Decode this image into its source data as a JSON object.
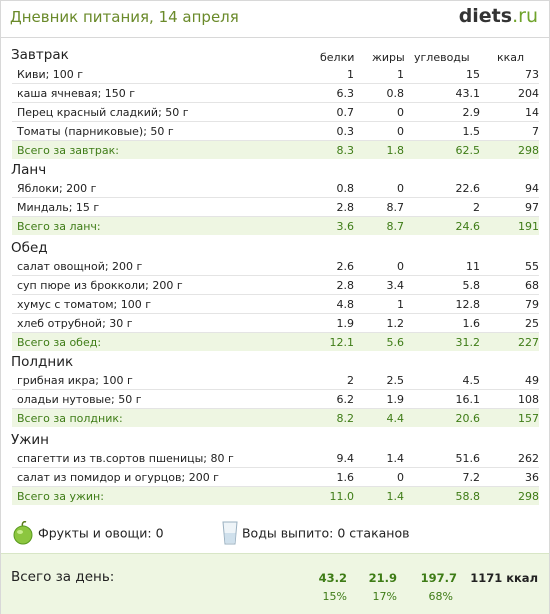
{
  "header": {
    "title": "Дневник питания, 14 апреля",
    "brand_main": "diets",
    "brand_domain": ".ru"
  },
  "columns": [
    "белки",
    "жиры",
    "углеводы",
    "ккал"
  ],
  "meals": [
    {
      "name": "Завтрак",
      "items": [
        {
          "name": "Киви; 100 г",
          "v": [
            "1",
            "1",
            "15",
            "73"
          ]
        },
        {
          "name": "каша ячневая; 150 г",
          "v": [
            "6.3",
            "0.8",
            "43.1",
            "204"
          ]
        },
        {
          "name": "Перец красный сладкий; 50 г",
          "v": [
            "0.7",
            "0",
            "2.9",
            "14"
          ]
        },
        {
          "name": "Томаты (парниковые); 50 г",
          "v": [
            "0.3",
            "0",
            "1.5",
            "7"
          ]
        }
      ],
      "total": {
        "name": "Всего за завтрак:",
        "v": [
          "8.3",
          "1.8",
          "62.5",
          "298"
        ]
      }
    },
    {
      "name": "Ланч",
      "items": [
        {
          "name": "Яблоки; 200 г",
          "v": [
            "0.8",
            "0",
            "22.6",
            "94"
          ]
        },
        {
          "name": "Миндаль; 15 г",
          "v": [
            "2.8",
            "8.7",
            "2",
            "97"
          ]
        }
      ],
      "total": {
        "name": "Всего за ланч:",
        "v": [
          "3.6",
          "8.7",
          "24.6",
          "191"
        ]
      }
    },
    {
      "name": "Обед",
      "items": [
        {
          "name": "салат овощной; 200 г",
          "v": [
            "2.6",
            "0",
            "11",
            "55"
          ]
        },
        {
          "name": "суп пюре из брокколи; 200 г",
          "v": [
            "2.8",
            "3.4",
            "5.8",
            "68"
          ]
        },
        {
          "name": "хумус с томатом; 100 г",
          "v": [
            "4.8",
            "1",
            "12.8",
            "79"
          ]
        },
        {
          "name": "хлеб отрубной; 30 г",
          "v": [
            "1.9",
            "1.2",
            "1.6",
            "25"
          ]
        }
      ],
      "total": {
        "name": "Всего за обед:",
        "v": [
          "12.1",
          "5.6",
          "31.2",
          "227"
        ]
      }
    },
    {
      "name": "Полдник",
      "items": [
        {
          "name": "грибная икра; 100 г",
          "v": [
            "2",
            "2.5",
            "4.5",
            "49"
          ]
        },
        {
          "name": "оладьи нутовые; 50 г",
          "v": [
            "6.2",
            "1.9",
            "16.1",
            "108"
          ]
        }
      ],
      "total": {
        "name": "Всего за полдник:",
        "v": [
          "8.2",
          "4.4",
          "20.6",
          "157"
        ]
      }
    },
    {
      "name": "Ужин",
      "items": [
        {
          "name": "спагетти из тв.сортов пшеницы; 80 г",
          "v": [
            "9.4",
            "1.4",
            "51.6",
            "262"
          ]
        },
        {
          "name": "салат из помидор и огурцов; 200 г",
          "v": [
            "1.6",
            "0",
            "7.2",
            "36"
          ]
        }
      ],
      "total": {
        "name": "Всего за ужин:",
        "v": [
          "11.0",
          "1.4",
          "58.8",
          "298"
        ]
      }
    }
  ],
  "extras": {
    "fruits": "Фрукты и овощи: 0",
    "water": "Воды выпито: 0 стаканов"
  },
  "day": {
    "label": "Всего за день:",
    "protein": "43.2",
    "fat": "21.9",
    "carbs": "197.7",
    "kcal": "1171 ккал",
    "protein_pct": "15%",
    "fat_pct": "17%",
    "carbs_pct": "68%"
  }
}
